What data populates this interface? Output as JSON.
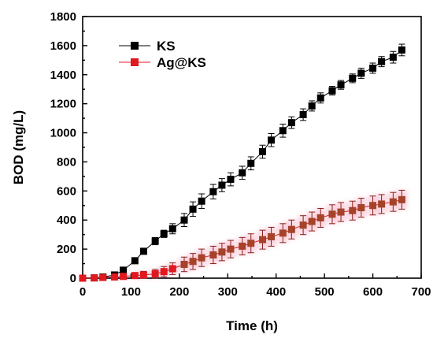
{
  "chart_data": {
    "type": "line",
    "xlabel": "Time (h)",
    "ylabel": "BOD (mg/L)",
    "xlim": [
      0,
      700
    ],
    "ylim": [
      0,
      1800
    ],
    "x_ticks": [
      "0",
      "100",
      "200",
      "300",
      "400",
      "500",
      "600",
      "700"
    ],
    "y_ticks": [
      "0",
      "200",
      "400",
      "600",
      "800",
      "1000",
      "1200",
      "1400",
      "1600",
      "1800"
    ],
    "legend_position": "top-left",
    "grid": false,
    "series": [
      {
        "name": "KS",
        "color": "#000000",
        "marker": "square",
        "points": [
          {
            "x": 0,
            "y": 0,
            "err": 5
          },
          {
            "x": 24,
            "y": 2,
            "err": 5
          },
          {
            "x": 42,
            "y": 8,
            "err": 6
          },
          {
            "x": 66,
            "y": 22,
            "err": 8
          },
          {
            "x": 84,
            "y": 55,
            "err": 10
          },
          {
            "x": 108,
            "y": 120,
            "err": 12
          },
          {
            "x": 126,
            "y": 185,
            "err": 15
          },
          {
            "x": 150,
            "y": 255,
            "err": 25
          },
          {
            "x": 168,
            "y": 305,
            "err": 25
          },
          {
            "x": 186,
            "y": 340,
            "err": 35
          },
          {
            "x": 210,
            "y": 400,
            "err": 45
          },
          {
            "x": 228,
            "y": 475,
            "err": 50
          },
          {
            "x": 246,
            "y": 530,
            "err": 50
          },
          {
            "x": 270,
            "y": 595,
            "err": 50
          },
          {
            "x": 288,
            "y": 640,
            "err": 45
          },
          {
            "x": 306,
            "y": 680,
            "err": 45
          },
          {
            "x": 330,
            "y": 725,
            "err": 45
          },
          {
            "x": 348,
            "y": 790,
            "err": 45
          },
          {
            "x": 372,
            "y": 870,
            "err": 45
          },
          {
            "x": 390,
            "y": 950,
            "err": 45
          },
          {
            "x": 414,
            "y": 1015,
            "err": 45
          },
          {
            "x": 432,
            "y": 1070,
            "err": 40
          },
          {
            "x": 456,
            "y": 1125,
            "err": 40
          },
          {
            "x": 474,
            "y": 1185,
            "err": 35
          },
          {
            "x": 492,
            "y": 1240,
            "err": 35
          },
          {
            "x": 516,
            "y": 1290,
            "err": 30
          },
          {
            "x": 534,
            "y": 1330,
            "err": 30
          },
          {
            "x": 558,
            "y": 1375,
            "err": 30
          },
          {
            "x": 576,
            "y": 1410,
            "err": 35
          },
          {
            "x": 600,
            "y": 1445,
            "err": 35
          },
          {
            "x": 618,
            "y": 1490,
            "err": 35
          },
          {
            "x": 642,
            "y": 1520,
            "err": 40
          },
          {
            "x": 660,
            "y": 1570,
            "err": 40
          }
        ]
      },
      {
        "name": "Ag@KS",
        "color": "#e0191f",
        "marker": "square",
        "points": [
          {
            "x": 0,
            "y": 0,
            "err": 5
          },
          {
            "x": 24,
            "y": 2,
            "err": 5
          },
          {
            "x": 42,
            "y": 5,
            "err": 6
          },
          {
            "x": 66,
            "y": 8,
            "err": 10
          },
          {
            "x": 84,
            "y": 12,
            "err": 15
          },
          {
            "x": 108,
            "y": 18,
            "err": 20
          },
          {
            "x": 126,
            "y": 22,
            "err": 25
          },
          {
            "x": 150,
            "y": 30,
            "err": 30
          },
          {
            "x": 168,
            "y": 45,
            "err": 35
          },
          {
            "x": 186,
            "y": 65,
            "err": 40
          },
          {
            "x": 210,
            "y": 95,
            "err": 50
          },
          {
            "x": 228,
            "y": 115,
            "err": 55
          },
          {
            "x": 246,
            "y": 140,
            "err": 60
          },
          {
            "x": 270,
            "y": 160,
            "err": 60
          },
          {
            "x": 288,
            "y": 180,
            "err": 60
          },
          {
            "x": 306,
            "y": 200,
            "err": 60
          },
          {
            "x": 330,
            "y": 220,
            "err": 60
          },
          {
            "x": 348,
            "y": 240,
            "err": 65
          },
          {
            "x": 372,
            "y": 265,
            "err": 65
          },
          {
            "x": 390,
            "y": 285,
            "err": 65
          },
          {
            "x": 414,
            "y": 310,
            "err": 65
          },
          {
            "x": 432,
            "y": 335,
            "err": 65
          },
          {
            "x": 456,
            "y": 365,
            "err": 65
          },
          {
            "x": 474,
            "y": 390,
            "err": 65
          },
          {
            "x": 492,
            "y": 415,
            "err": 65
          },
          {
            "x": 516,
            "y": 440,
            "err": 65
          },
          {
            "x": 534,
            "y": 455,
            "err": 65
          },
          {
            "x": 558,
            "y": 465,
            "err": 65
          },
          {
            "x": 576,
            "y": 485,
            "err": 65
          },
          {
            "x": 600,
            "y": 500,
            "err": 65
          },
          {
            "x": 618,
            "y": 510,
            "err": 65
          },
          {
            "x": 642,
            "y": 525,
            "err": 65
          },
          {
            "x": 660,
            "y": 540,
            "err": 65
          }
        ]
      }
    ]
  }
}
